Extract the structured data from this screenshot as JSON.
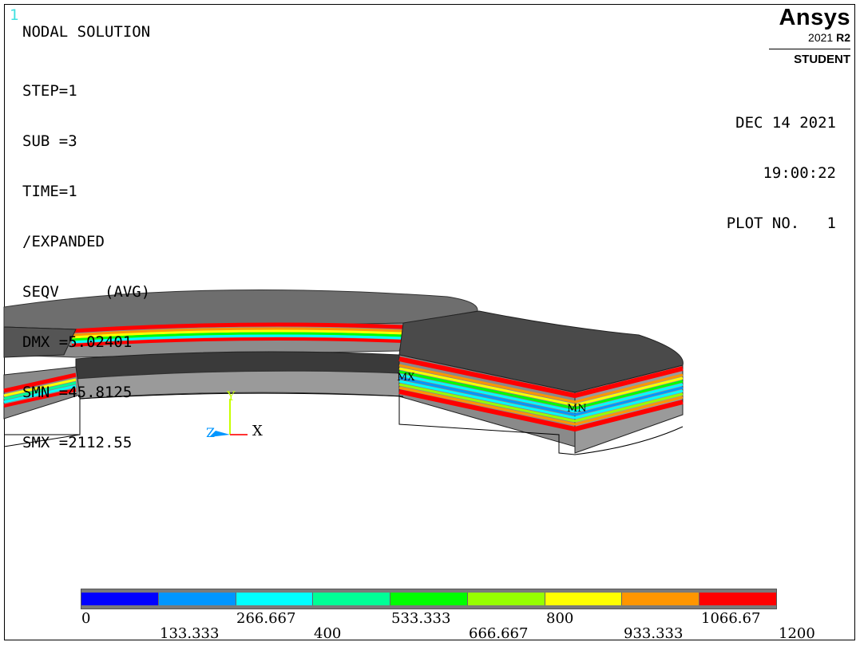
{
  "window_number": "1",
  "header": {
    "title": "NODAL SOLUTION",
    "info_lines": [
      "STEP=1",
      "SUB =3",
      "TIME=1",
      "/EXPANDED",
      "SEQV     (AVG)",
      "DMX =5.02401",
      "SMN =45.8125",
      "SMX =2112.55"
    ]
  },
  "date_block": [
    "DEC 14 2021",
    "19:00:22",
    "PLOT NO.   1"
  ],
  "logo": {
    "brand": "Ansys",
    "version_year": "2021 ",
    "version_rel": "R2",
    "edition": "STUDENT"
  },
  "triad": {
    "x": "X",
    "y": "Y",
    "z": "Z"
  },
  "markers": {
    "max": "MX",
    "min": "MN"
  },
  "legend": {
    "colors": [
      "#0000ff",
      "#0096ff",
      "#00ffff",
      "#00ff96",
      "#00ff00",
      "#96ff00",
      "#ffff00",
      "#ff9600",
      "#ff0000"
    ],
    "labels_top": [
      "0",
      "266.667",
      "533.333",
      "800",
      "1066.67"
    ],
    "labels_bottom": [
      "133.333",
      "400",
      "666.667",
      "933.333",
      "1200"
    ]
  }
}
